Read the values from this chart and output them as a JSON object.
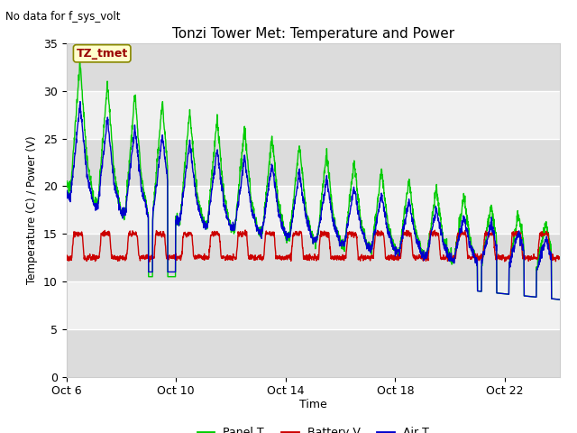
{
  "title": "Tonzi Tower Met: Temperature and Power",
  "top_left_text": "No data for f_sys_volt",
  "ylabel": "Temperature (C) / Power (V)",
  "xlabel": "Time",
  "ylim": [
    0,
    35
  ],
  "yticks": [
    0,
    5,
    10,
    15,
    20,
    25,
    30,
    35
  ],
  "xtick_labels": [
    "Oct 6",
    "Oct 10",
    "Oct 14",
    "Oct 18",
    "Oct 22"
  ],
  "xtick_pos": [
    0,
    4,
    8,
    12,
    16
  ],
  "xlim": [
    0,
    18
  ],
  "legend_entries": [
    "Panel T",
    "Battery V",
    "Air T"
  ],
  "legend_colors": [
    "#00dd00",
    "#dd0000",
    "#0000dd"
  ],
  "plot_bg_color": "#f5f5f5",
  "band_colors": [
    "#dcdcdc",
    "#f0f0f0"
  ],
  "annotation_text": "TZ_tmet",
  "annotation_bg": "#ffffcc",
  "annotation_border": "#888800",
  "annotation_text_color": "#990000"
}
